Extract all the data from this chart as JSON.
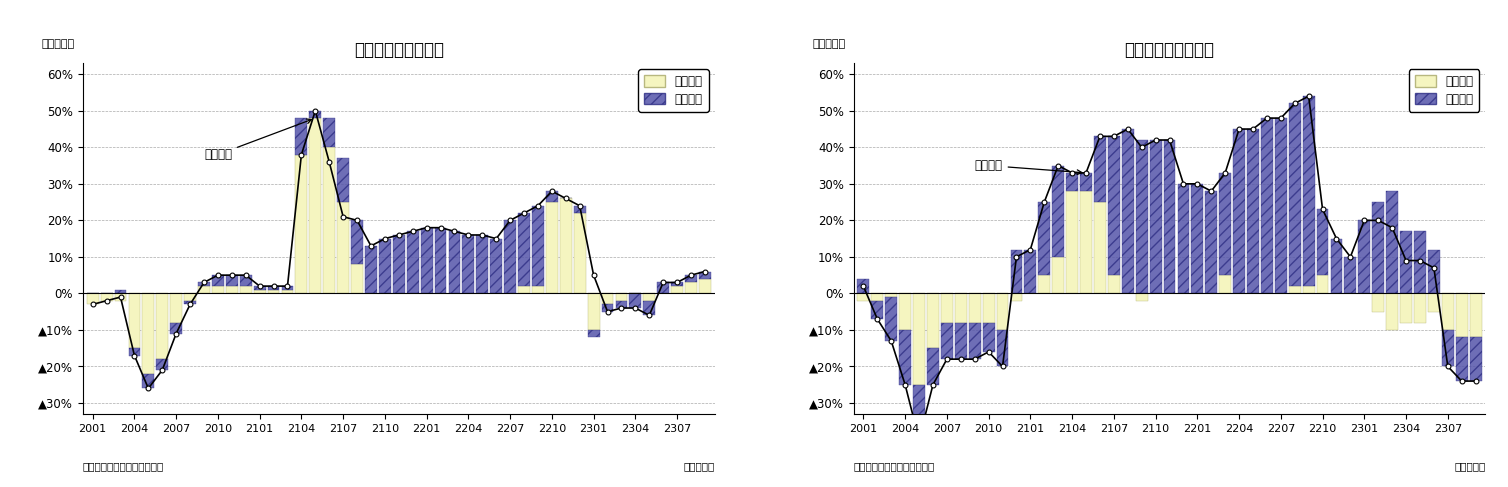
{
  "chart1_title": "輸出金額の要因分解",
  "chart2_title": "輸入金額の要因分解",
  "chart1_annotation": "輸出金額",
  "chart2_annotation": "輸入金額",
  "ylabel": "（前年比）",
  "xlabel_right": "（年・月）",
  "source": "（資料）財務省「貿易統計」",
  "legend_quantity": "数量要因",
  "legend_price": "価格要因",
  "ytick_vals": [
    -30,
    -20,
    -10,
    0,
    10,
    20,
    30,
    40,
    50,
    60
  ],
  "ytick_labels": [
    "▲30%",
    "▲20%",
    "▲10%",
    "0%",
    "10%",
    "20%",
    "30%",
    "40%",
    "50%",
    "60%"
  ],
  "xtick_labels": [
    "2001",
    "2004",
    "2007",
    "2010",
    "2101",
    "2104",
    "2107",
    "2110",
    "2201",
    "2204",
    "2207",
    "2210",
    "2301",
    "2304",
    "2307"
  ],
  "ylim": [
    -0.33,
    0.63
  ],
  "qty_color": "#f5f5c0",
  "qty_edge": "#b8b880",
  "price_color": "#5555aa",
  "price_edge": "#333388",
  "bg_color": "#ffffff",
  "tick_step": 3,
  "export_qty": [
    -3,
    -2,
    -2,
    -15,
    -22,
    -18,
    -8,
    -2,
    2,
    2,
    2,
    2,
    1,
    1,
    1,
    38,
    48,
    40,
    25,
    8,
    0,
    0,
    0,
    0,
    0,
    0,
    0,
    0,
    0,
    0,
    0,
    2,
    2,
    25,
    26,
    22,
    -10,
    -3,
    -2,
    0,
    -2,
    0,
    2,
    3,
    4
  ],
  "export_price": [
    0,
    0,
    1,
    -2,
    -4,
    -3,
    -3,
    -1,
    1,
    3,
    3,
    3,
    1,
    1,
    1,
    10,
    2,
    8,
    12,
    12,
    13,
    15,
    16,
    17,
    18,
    18,
    17,
    16,
    16,
    15,
    20,
    20,
    22,
    3,
    0,
    2,
    -2,
    -2,
    -2,
    -4,
    -4,
    3,
    1,
    2,
    2
  ],
  "export_line": [
    -3,
    -2,
    -1,
    -17,
    -26,
    -21,
    -11,
    -3,
    3,
    5,
    5,
    5,
    2,
    2,
    2,
    38,
    50,
    36,
    21,
    20,
    13,
    15,
    16,
    17,
    18,
    18,
    17,
    16,
    16,
    15,
    20,
    22,
    24,
    28,
    26,
    24,
    5,
    -5,
    -4,
    -4,
    -6,
    3,
    3,
    5,
    6
  ],
  "import_qty": [
    -2,
    -2,
    -1,
    -10,
    -25,
    -15,
    -8,
    -8,
    -8,
    -8,
    -10,
    -2,
    0,
    5,
    10,
    28,
    28,
    25,
    5,
    0,
    -2,
    0,
    0,
    0,
    0,
    0,
    5,
    0,
    0,
    0,
    0,
    2,
    2,
    5,
    0,
    0,
    0,
    -5,
    -10,
    -8,
    -8,
    -5,
    -10,
    -12,
    -12
  ],
  "import_price": [
    4,
    -5,
    -12,
    -15,
    -15,
    -10,
    -10,
    -10,
    -10,
    -8,
    -10,
    12,
    12,
    20,
    25,
    5,
    5,
    18,
    38,
    45,
    42,
    42,
    42,
    30,
    30,
    28,
    28,
    45,
    45,
    48,
    48,
    50,
    52,
    18,
    15,
    10,
    20,
    25,
    28,
    17,
    17,
    12,
    -10,
    -12,
    -12
  ],
  "import_line": [
    2,
    -7,
    -13,
    -25,
    -40,
    -25,
    -18,
    -18,
    -18,
    -16,
    -20,
    10,
    12,
    25,
    35,
    33,
    33,
    43,
    43,
    45,
    40,
    42,
    42,
    30,
    30,
    28,
    33,
    45,
    45,
    48,
    48,
    52,
    54,
    23,
    15,
    10,
    20,
    20,
    18,
    9,
    9,
    7,
    -20,
    -24,
    -24
  ]
}
